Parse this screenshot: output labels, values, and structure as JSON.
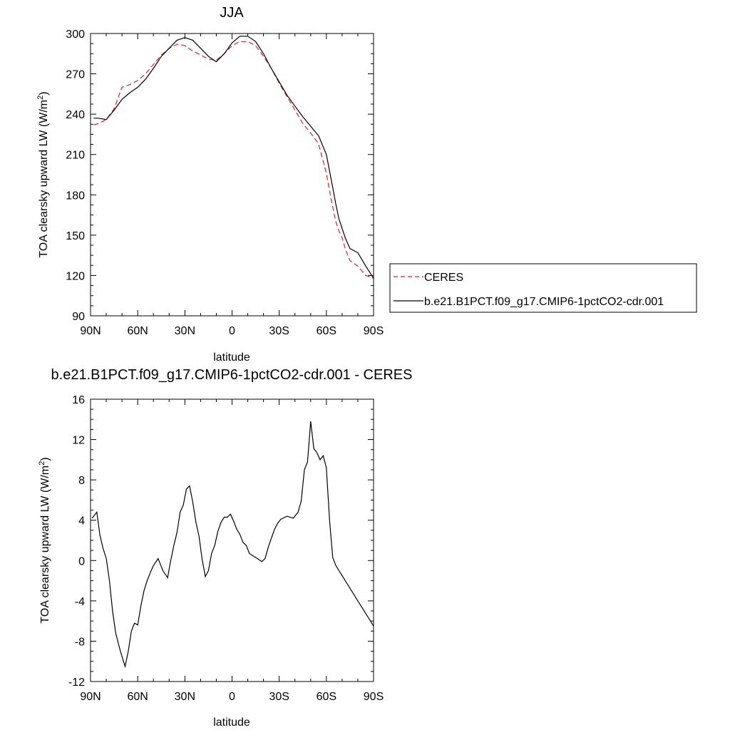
{
  "chart_data": [
    {
      "type": "line",
      "title": "JJA",
      "xlabel": "latitude",
      "ylabel": "TOA clearsky upward LW (W/m²)",
      "ylabel_main": "TOA clearsky upward LW (W/m",
      "ylabel_sup": "2",
      "ylabel_end": ")",
      "ylim": [
        90,
        300
      ],
      "xlim": [
        90,
        -90
      ],
      "x_ticks": [
        90,
        60,
        30,
        0,
        -30,
        -60,
        -90
      ],
      "x_tick_labels": [
        "90N",
        "60N",
        "30N",
        "0",
        "30S",
        "60S",
        "90S"
      ],
      "y_ticks": [
        90,
        120,
        150,
        180,
        210,
        240,
        270,
        300
      ],
      "y_tick_labels": [
        "90",
        "120",
        "150",
        "180",
        "210",
        "240",
        "270",
        "300"
      ],
      "legend": {
        "placement": "right",
        "entries": [
          "CERES",
          "b.e21.B1PCT.f09_g17.CMIP6-1pctCO2-cdr.001"
        ]
      },
      "series": [
        {
          "name": "CERES",
          "color": "#e02020",
          "dash": "dashed",
          "x": [
            88,
            85,
            80,
            75,
            70,
            65,
            60,
            55,
            50,
            45,
            40,
            35,
            30,
            25,
            20,
            15,
            10,
            5,
            0,
            -5,
            -10,
            -15,
            -20,
            -25,
            -30,
            -35,
            -40,
            -45,
            -50,
            -55,
            -60,
            -63,
            -66,
            -68,
            -70,
            -72,
            -75,
            -80,
            -85,
            -90
          ],
          "values": [
            232,
            233,
            236,
            244,
            260,
            262,
            265,
            270,
            277,
            284,
            289,
            292,
            291,
            287,
            284,
            281,
            280,
            285,
            291,
            294,
            294,
            291,
            283,
            274,
            263,
            253,
            243,
            233,
            226,
            218,
            196,
            177,
            160,
            153,
            148,
            140,
            131,
            127,
            120,
            118
          ]
        },
        {
          "name": "b.e21.B1PCT.f09_g17.CMIP6-1pctCO2-cdr.001",
          "color": "#000000",
          "dash": "solid",
          "x": [
            88,
            85,
            80,
            75,
            70,
            65,
            60,
            55,
            50,
            45,
            40,
            35,
            30,
            25,
            20,
            15,
            10,
            5,
            0,
            -5,
            -10,
            -15,
            -20,
            -25,
            -30,
            -35,
            -40,
            -45,
            -50,
            -55,
            -60,
            -63,
            -66,
            -68,
            -70,
            -72,
            -75,
            -80,
            -85,
            -90
          ],
          "values": [
            237,
            237,
            236,
            243,
            251,
            256,
            260,
            266,
            274,
            283,
            289,
            295,
            297,
            295,
            289,
            283,
            279,
            285,
            293,
            298,
            298,
            294,
            285,
            274,
            264,
            254,
            246,
            238,
            231,
            224,
            210,
            192,
            173,
            162,
            155,
            148,
            140,
            137,
            127,
            118
          ]
        }
      ]
    },
    {
      "type": "line",
      "title": "b.e21.B1PCT.f09_g17.CMIP6-1pctCO2-cdr.001 - CERES",
      "xlabel": "latitude",
      "ylabel": "TOA clearsky upward LW (W/m²)",
      "ylabel_main": "TOA clearsky upward LW (W/m",
      "ylabel_sup": "2",
      "ylabel_end": ")",
      "ylim": [
        -12,
        16
      ],
      "xlim": [
        90,
        -90
      ],
      "x_ticks": [
        90,
        60,
        30,
        0,
        -30,
        -60,
        -90
      ],
      "x_tick_labels": [
        "90N",
        "60N",
        "30N",
        "0",
        "30S",
        "60S",
        "90S"
      ],
      "y_ticks": [
        -12,
        -8,
        -4,
        0,
        4,
        8,
        12,
        16
      ],
      "y_tick_labels": [
        "-12",
        "-8",
        "-4",
        "0",
        "4",
        "8",
        "12",
        "16"
      ],
      "series": [
        {
          "color": "#000000",
          "dash": "solid",
          "x": [
            89,
            86,
            84,
            82,
            80,
            78,
            76,
            74,
            71,
            68,
            66,
            64,
            62,
            60,
            58,
            56,
            54,
            52,
            50,
            47,
            44,
            41,
            39,
            37,
            35,
            33,
            31,
            29,
            27,
            25,
            23,
            21,
            19,
            17,
            15,
            13,
            11,
            9,
            7,
            5,
            3,
            1,
            -1,
            -3,
            -5,
            -7,
            -9,
            -11,
            -13,
            -15,
            -17,
            -19,
            -21,
            -23,
            -25,
            -27,
            -29,
            -31,
            -35,
            -39,
            -42,
            -44,
            -46,
            -48,
            -50,
            -52,
            -54,
            -56,
            -58,
            -60,
            -62,
            -64,
            -66,
            -68,
            -70,
            -72,
            -74,
            -76,
            -78,
            -80,
            -82,
            -84,
            -86,
            -88,
            -90
          ],
          "values": [
            4.2,
            4.8,
            2.5,
            1.2,
            0.2,
            -2,
            -5,
            -7.2,
            -9,
            -10.5,
            -9,
            -7,
            -6.2,
            -6.4,
            -4.5,
            -3,
            -2,
            -1.2,
            -0.5,
            0.2,
            -1,
            -1.7,
            0,
            1.5,
            2.8,
            4.8,
            5.5,
            7.1,
            7.4,
            5.8,
            3.8,
            2.4,
            0.1,
            -1.6,
            -1,
            0.7,
            1.5,
            2.9,
            3.8,
            4.3,
            4.3,
            4.6,
            3.9,
            3.1,
            2.6,
            1.8,
            1.5,
            0.7,
            0.5,
            0.3,
            0.1,
            -0.1,
            0.2,
            1.3,
            2.2,
            3.1,
            3.7,
            4.1,
            4.4,
            4.2,
            4.8,
            5.9,
            9.0,
            9.8,
            13.8,
            11.1,
            10.7,
            10.0,
            10.4,
            9.2,
            4.1,
            0.3,
            -0.5,
            -1,
            -1.5,
            -2,
            -2.5,
            -3,
            -3.5,
            -4,
            -4.5,
            -5,
            -5.5,
            -6,
            -6.5
          ],
          "note_unused": []
        }
      ]
    }
  ]
}
